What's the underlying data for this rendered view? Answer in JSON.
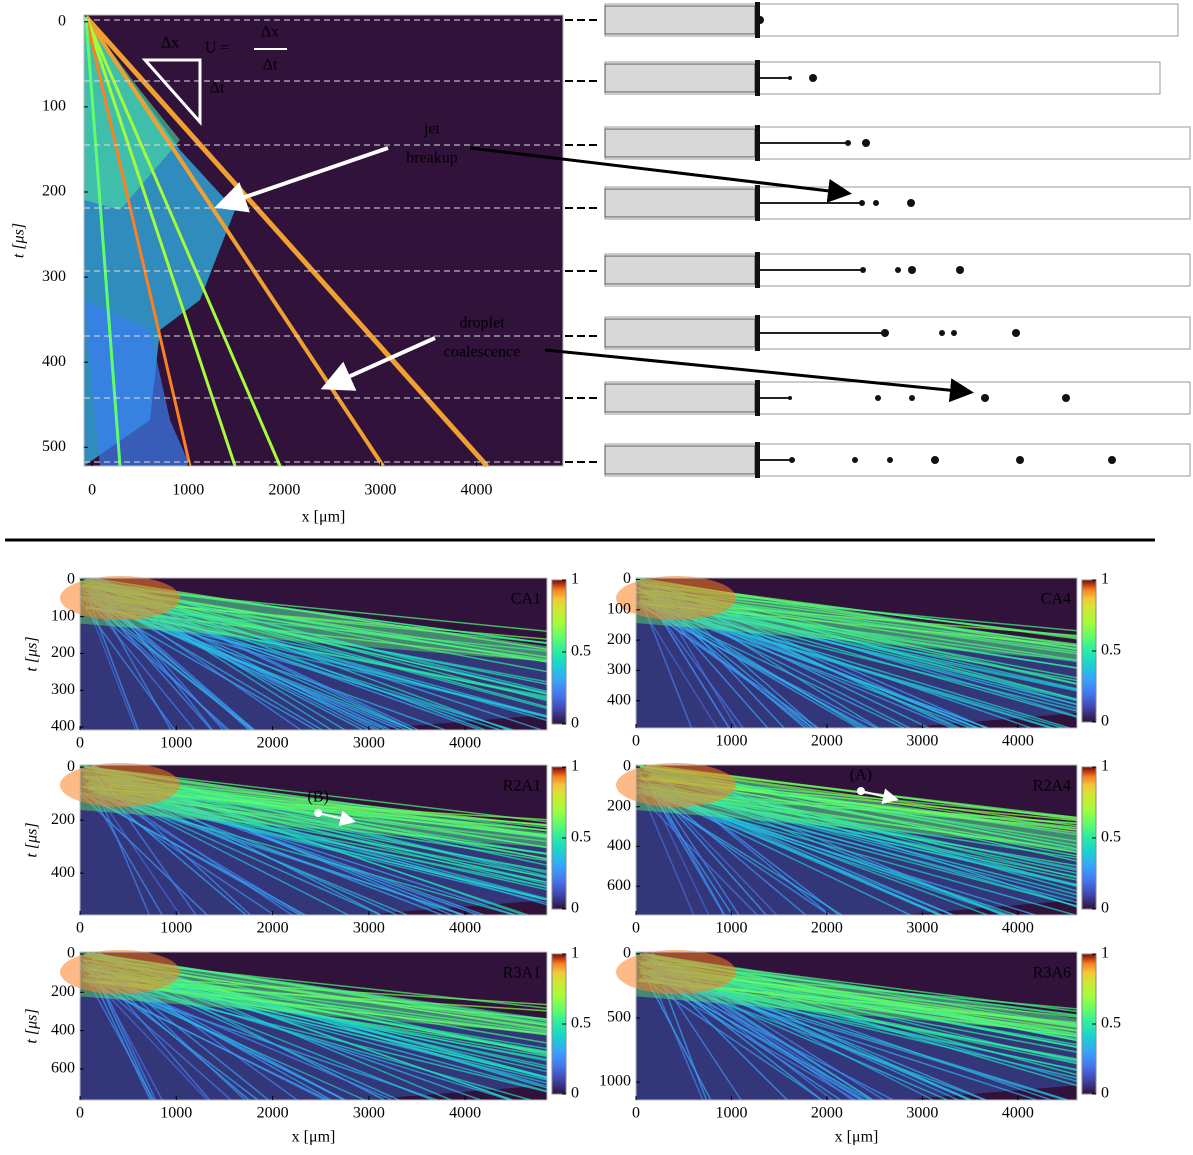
{
  "chart_data": [
    {
      "type": "heatmap",
      "xlabel": "x [μm]",
      "ylabel": "t [μs]",
      "xlim": [
        -85,
        4900
      ],
      "xticks": [
        0,
        1000,
        2000,
        3000,
        4000
      ],
      "ylim": [
        -8,
        522
      ],
      "yticks": [
        0,
        100,
        200,
        300,
        400,
        500
      ],
      "annotations": {
        "lhs": "U =",
        "num": "Δx",
        "den": "Δt",
        "dx": "Δx",
        "dt": "Δt",
        "jet": [
          "jet",
          "breakup"
        ],
        "coalescence": [
          "droplet",
          "coalescence"
        ]
      }
    },
    {
      "type": "heatmap",
      "title": "CA1",
      "ylabel": "t [μs]",
      "xlim": [
        0,
        4850
      ],
      "xticks": [
        0,
        1000,
        2000,
        3000,
        4000
      ],
      "ylim": [
        -5,
        408
      ],
      "yticks": [
        0,
        100,
        200,
        300,
        400
      ],
      "clim": [
        0,
        1
      ],
      "cticks": [
        0,
        0.5,
        1
      ]
    },
    {
      "type": "heatmap",
      "title": "CA4",
      "xlim": [
        0,
        4620
      ],
      "xticks": [
        0,
        1000,
        2000,
        3000,
        4000
      ],
      "ylim": [
        -5,
        490
      ],
      "yticks": [
        0,
        100,
        200,
        300,
        400
      ],
      "clim": [
        0,
        1
      ],
      "cticks": [
        0,
        0.5,
        1
      ]
    },
    {
      "type": "heatmap",
      "title": "R2A1",
      "ylabel": "t [μs]",
      "annotation": "(B)",
      "xlim": [
        0,
        4850
      ],
      "xticks": [
        0,
        1000,
        2000,
        3000,
        4000
      ],
      "ylim": [
        -8,
        558
      ],
      "yticks": [
        0,
        200,
        400
      ],
      "clim": [
        0,
        1
      ],
      "cticks": [
        0,
        0.5,
        1
      ]
    },
    {
      "type": "heatmap",
      "title": "R2A4",
      "annotation": "(A)",
      "xlim": [
        0,
        4620
      ],
      "xticks": [
        0,
        1000,
        2000,
        3000,
        4000
      ],
      "ylim": [
        -10,
        745
      ],
      "yticks": [
        0,
        200,
        400,
        600
      ],
      "clim": [
        0,
        1
      ],
      "cticks": [
        0,
        0.5,
        1
      ]
    },
    {
      "type": "heatmap",
      "title": "R3A1",
      "ylabel": "t [μs]",
      "xlabel": "x [μm]",
      "xlim": [
        0,
        4850
      ],
      "xticks": [
        0,
        1000,
        2000,
        3000,
        4000
      ],
      "ylim": [
        -10,
        762
      ],
      "yticks": [
        0,
        200,
        400,
        600
      ],
      "clim": [
        0,
        1
      ],
      "cticks": [
        0,
        0.5,
        1
      ]
    },
    {
      "type": "heatmap",
      "title": "R3A6",
      "xlabel": "x [μm]",
      "xlim": [
        0,
        4620
      ],
      "xticks": [
        0,
        1000,
        2000,
        3000,
        4000
      ],
      "ylim": [
        -15,
        1140
      ],
      "yticks": [
        0,
        500,
        1000
      ],
      "clim": [
        0,
        1
      ],
      "cticks": [
        0,
        0.5,
        1
      ]
    }
  ]
}
